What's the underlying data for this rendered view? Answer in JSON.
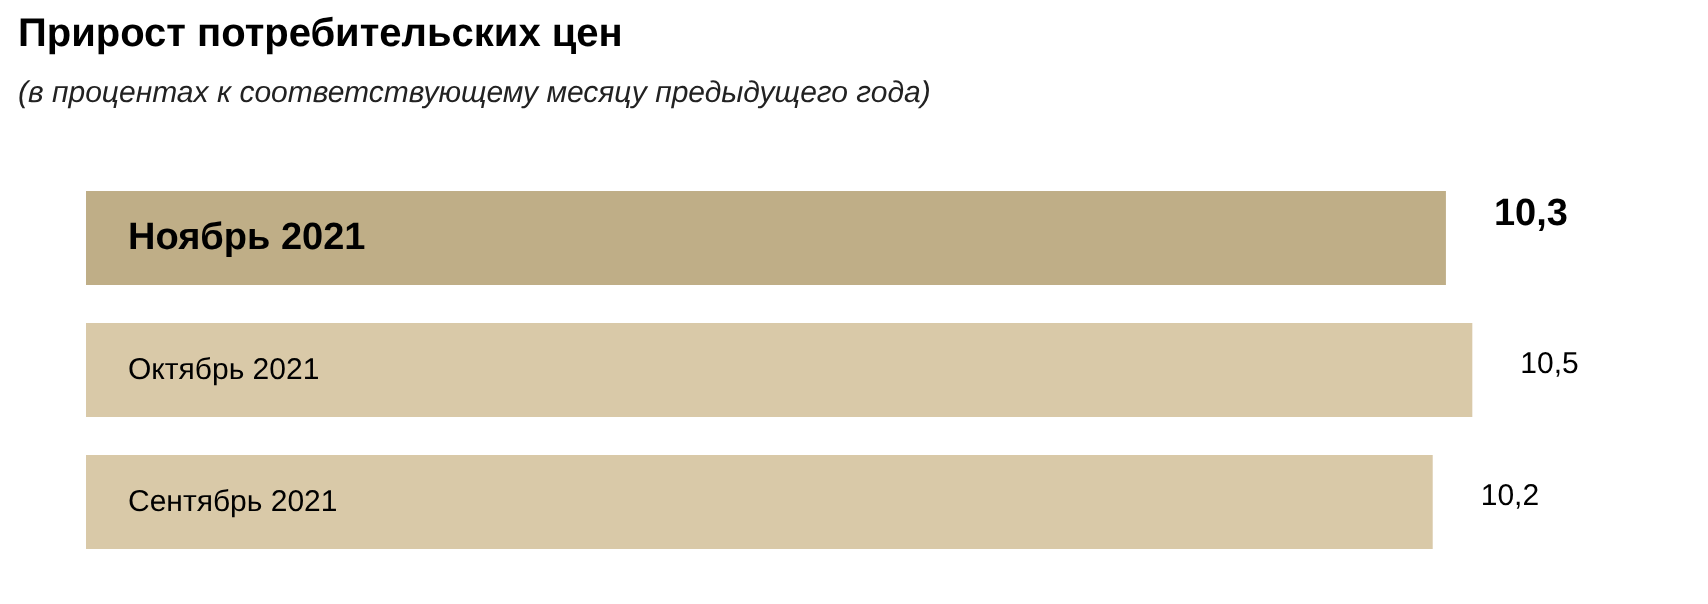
{
  "chart_data": {
    "type": "bar",
    "orientation": "horizontal",
    "title": "Прирост потребительских цен",
    "subtitle": "(в процентах к соответствующему месяцу предыдущего года)",
    "categories": [
      "Ноябрь 2021",
      "Октябрь 2021",
      "Сентябрь 2021"
    ],
    "values": [
      10.3,
      10.5,
      10.2
    ],
    "value_labels": [
      "10,3",
      "10,5",
      "10,2"
    ],
    "colors": [
      "#bfae87",
      "#d9c9a8",
      "#d9c9a8"
    ]
  }
}
